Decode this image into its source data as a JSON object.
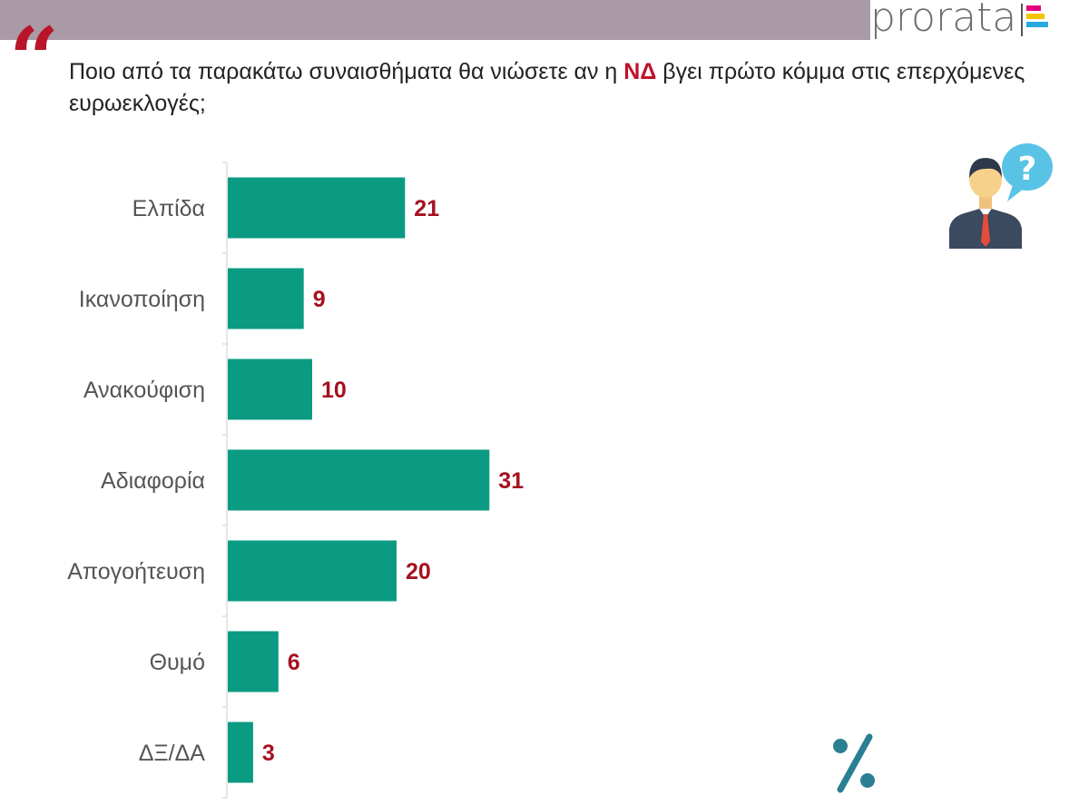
{
  "header": {
    "brand": "prorata",
    "brand_colors": [
      "#e4007c",
      "#f2c500",
      "#29a8e0"
    ]
  },
  "question": {
    "quote_mark": "“",
    "before": "Ποιο από τα παρακάτω συναισθήματα θα νιώσετε αν η ",
    "highlight": "ΝΔ",
    "after": " βγει πρώτο κόμμα στις επερχόμενες ευρωεκλογές;"
  },
  "icons": {
    "respondent": "person-question-icon",
    "percent": "percent-icon"
  },
  "chart_data": {
    "type": "bar",
    "orientation": "horizontal",
    "categories": [
      "Ελπίδα",
      "Ικανοποίηση",
      "Ανακούφιση",
      "Αδιαφορία",
      "Απογοήτευση",
      "Θυμό",
      "ΔΞ/ΔΑ"
    ],
    "values": [
      21,
      9,
      10,
      31,
      20,
      6,
      3
    ],
    "unit": "%",
    "bar_color": "#0b9b82",
    "label_color": "#a5111f",
    "xlim": [
      0,
      100
    ]
  }
}
